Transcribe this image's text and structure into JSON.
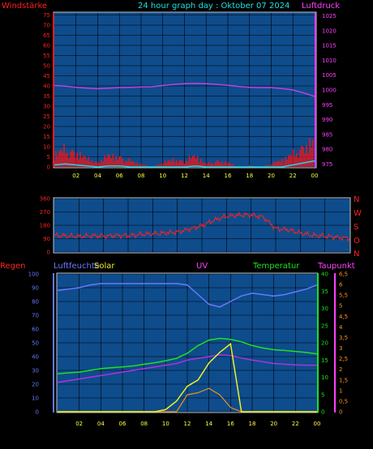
{
  "header": {
    "wind_label": "Windstärke",
    "title": "24 hour graph day : Oktober 07 2024",
    "pressure_label": "Luftdruck"
  },
  "direction_labels": [
    "N",
    "W",
    "S",
    "O",
    "N"
  ],
  "bottom_header": {
    "rain": "Regen",
    "humidity": "Luftfeuchte",
    "solar": "Solar",
    "uv": "UV",
    "temperature": "Temperatur",
    "dewpoint": "Taupunkt"
  },
  "colors": {
    "plot_bg": "#0e4c8c",
    "grid": "#000000",
    "wind": "#ff1010",
    "gust": "#ff0000",
    "wind_avg": "#18d8e8",
    "pressure": "#c040e0",
    "direction": "#ff2020",
    "humidity": "#6878ff",
    "temperature": "#20e020",
    "dewpoint": "#b030e0",
    "solar": "#e89020",
    "uv": "#f0f020",
    "rain_axis": "#ff2020",
    "taupunkt_axis": "#ff40ff"
  },
  "x_ticks": [
    "02",
    "04",
    "06",
    "08",
    "10",
    "12",
    "14",
    "16",
    "18",
    "20",
    "22",
    "00"
  ],
  "chart_data": [
    {
      "type": "line",
      "name": "wind-pressure",
      "x_range_hours": [
        0,
        24
      ],
      "y_left": {
        "label": "Windstärke",
        "ticks": [
          0,
          5,
          10,
          15,
          20,
          25,
          30,
          35,
          40,
          45,
          50,
          55,
          60,
          65,
          70,
          75
        ],
        "ylim": [
          0,
          76
        ]
      },
      "y_right": {
        "label": "Luftdruck",
        "ticks": [
          975,
          980,
          985,
          990,
          995,
          1000,
          1005,
          1010,
          1015,
          1020,
          1025
        ],
        "ylim": [
          974,
          1026
        ]
      },
      "series": [
        {
          "axis": "right",
          "x": [
            0,
            1,
            2,
            3,
            4,
            5,
            6,
            7,
            8,
            9,
            10,
            11,
            12,
            13,
            14,
            15,
            16,
            17,
            18,
            19,
            20,
            21,
            22,
            23,
            24
          ],
          "values": [
            1001.5,
            1001.3,
            1000.9,
            1000.6,
            1000.4,
            1000.6,
            1000.8,
            1000.9,
            1001.0,
            1001.1,
            1001.5,
            1001.9,
            1002.1,
            1002.2,
            1002.1,
            1001.9,
            1001.6,
            1001.2,
            1000.9,
            1000.8,
            1000.8,
            1000.5,
            1000.0,
            999.0,
            997.8
          ]
        },
        {
          "axis": "left",
          "x": [
            0,
            1,
            2,
            3,
            4,
            5,
            6,
            7,
            8,
            9,
            10,
            11,
            12,
            13,
            14,
            15,
            16,
            17,
            18,
            19,
            20,
            21,
            22,
            23,
            24
          ],
          "values": [
            9,
            12,
            10,
            6,
            3,
            8,
            7,
            4,
            2,
            0,
            3,
            5,
            4,
            8,
            2,
            4,
            3,
            0,
            1,
            0,
            2,
            5,
            9,
            14,
            18
          ]
        },
        {
          "axis": "left",
          "x": [
            0,
            1,
            2,
            3,
            4,
            5,
            6,
            7,
            8,
            9,
            10,
            11,
            12,
            13,
            14,
            15,
            16,
            17,
            18,
            19,
            20,
            21,
            22,
            23,
            24
          ],
          "values": [
            1,
            1.5,
            1,
            0.5,
            0,
            0.5,
            0.5,
            0,
            0,
            0,
            0,
            0,
            0,
            0.5,
            0,
            0,
            0,
            0,
            0,
            0,
            0,
            0,
            1,
            2,
            3
          ]
        }
      ]
    },
    {
      "type": "line",
      "name": "wind-direction",
      "x_range_hours": [
        0,
        24
      ],
      "y_left": {
        "ticks": [
          0,
          90,
          180,
          270,
          360
        ],
        "ylim": [
          0,
          360
        ]
      },
      "y_right": {
        "ticks": [
          "N",
          "W",
          "S",
          "O",
          "N"
        ]
      },
      "series": [
        {
          "x": [
            0,
            1,
            2,
            3,
            4,
            5,
            6,
            7,
            8,
            9,
            10,
            11,
            12,
            13,
            14,
            15,
            16,
            17,
            18,
            19,
            20,
            21,
            22,
            23,
            24
          ],
          "values": [
            112,
            108,
            105,
            110,
            108,
            112,
            110,
            118,
            122,
            128,
            135,
            155,
            178,
            215,
            240,
            248,
            250,
            235,
            158,
            150,
            128,
            112,
            108,
            100,
            92
          ]
        }
      ]
    },
    {
      "type": "line",
      "name": "humidity-temperature",
      "x_range_hours": [
        0,
        24
      ],
      "y_left": {
        "label": "Luftfeuchte",
        "ticks": [
          0,
          10,
          20,
          30,
          40,
          50,
          60,
          70,
          80,
          90,
          100
        ],
        "ylim": [
          0,
          100
        ]
      },
      "y_right_solar": {
        "label": "Solar",
        "ticks": [
          0,
          5,
          10,
          15,
          20,
          25,
          30,
          35,
          40
        ],
        "ylim": [
          0,
          40
        ]
      },
      "y_right_uv": {
        "label": "UV",
        "ticks": [
          "0",
          "0,5",
          "1",
          "1,5",
          "2",
          "2,5",
          "3",
          "3,5",
          "4",
          "4,5",
          "5",
          "5,5",
          "6",
          "6,5"
        ],
        "ylim": [
          0,
          6.5
        ]
      },
      "series": [
        {
          "x": [
            0,
            1,
            2,
            3,
            4,
            5,
            6,
            7,
            8,
            9,
            10,
            11,
            12,
            13,
            14,
            15,
            16,
            17,
            18,
            19,
            20,
            21,
            22,
            23,
            24
          ],
          "values": [
            88,
            89,
            90,
            92,
            93,
            93,
            93,
            93,
            93,
            93,
            93,
            93,
            92,
            85,
            78,
            76,
            80,
            84,
            86,
            85,
            84,
            85,
            87,
            89,
            92
          ]
        },
        {
          "x": [
            0,
            1,
            2,
            3,
            4,
            5,
            6,
            7,
            8,
            9,
            10,
            11,
            12,
            13,
            14,
            15,
            16,
            17,
            18,
            19,
            20,
            21,
            22,
            23,
            24
          ],
          "values": [
            11,
            11.3,
            11.5,
            12,
            12.5,
            12.8,
            13,
            13.3,
            13.8,
            14.2,
            14.8,
            15.5,
            17,
            19.2,
            20.8,
            21.3,
            21,
            20.3,
            19.2,
            18.5,
            18,
            17.8,
            17.5,
            17.2,
            16.8
          ]
        },
        {
          "x": [
            0,
            1,
            2,
            3,
            4,
            5,
            6,
            7,
            8,
            9,
            10,
            11,
            12,
            13,
            14,
            15,
            16,
            17,
            18,
            19,
            20,
            21,
            22,
            23,
            24
          ],
          "values": [
            8.5,
            9,
            9.5,
            10,
            10.5,
            11,
            11.5,
            12,
            12.5,
            13,
            13.5,
            14,
            15,
            15.5,
            16,
            16.5,
            16.3,
            15.6,
            15,
            14.5,
            14,
            13.8,
            13.6,
            13.5,
            13.5
          ]
        },
        {
          "x": [
            0,
            1,
            2,
            3,
            4,
            5,
            6,
            7,
            8,
            9,
            10,
            11,
            12,
            13,
            14,
            15,
            16,
            17,
            18,
            19,
            20,
            21,
            22,
            23,
            24
          ],
          "values": [
            0,
            0,
            0,
            0,
            0,
            0,
            0,
            0,
            0,
            0,
            0,
            0,
            0.8,
            0.9,
            1.1,
            0.8,
            0.2,
            0,
            0,
            0,
            0,
            0,
            0,
            0,
            0
          ]
        },
        {
          "x": [
            0,
            1,
            2,
            3,
            4,
            5,
            6,
            7,
            8,
            9,
            10,
            11,
            12,
            13,
            14,
            15,
            16,
            17,
            18,
            19,
            20,
            21,
            22,
            23,
            24
          ],
          "values": [
            0,
            0,
            0,
            0,
            0,
            0,
            0,
            0,
            0,
            0,
            0.1,
            0.5,
            1.2,
            1.5,
            2.3,
            2.8,
            3.2,
            0,
            0,
            0,
            0,
            0,
            0,
            0,
            0
          ]
        }
      ]
    }
  ]
}
